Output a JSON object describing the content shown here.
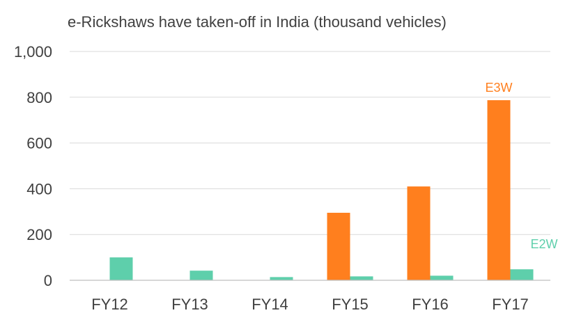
{
  "chart_data": {
    "type": "bar",
    "title": "e-Rickshaws have taken-off in India (thousand vehicles)",
    "xlabel": "",
    "ylabel": "",
    "categories": [
      "FY12",
      "FY13",
      "FY14",
      "FY15",
      "FY16",
      "FY17"
    ],
    "series": [
      {
        "name": "E3W",
        "color": "#FF7F1E",
        "values": [
          0,
          0,
          0,
          295,
          410,
          787
        ]
      },
      {
        "name": "E2W",
        "color": "#5ECFAB",
        "values": [
          100,
          42,
          14,
          17,
          20,
          48
        ]
      }
    ],
    "ylim": [
      0,
      1000
    ],
    "yticks": [
      "0",
      "200",
      "400",
      "600",
      "800",
      "1,000"
    ],
    "ytick_values": [
      0,
      200,
      400,
      600,
      800,
      1000
    ],
    "grid": true,
    "legend": "none; series labels placed beside the FY17 bars"
  }
}
